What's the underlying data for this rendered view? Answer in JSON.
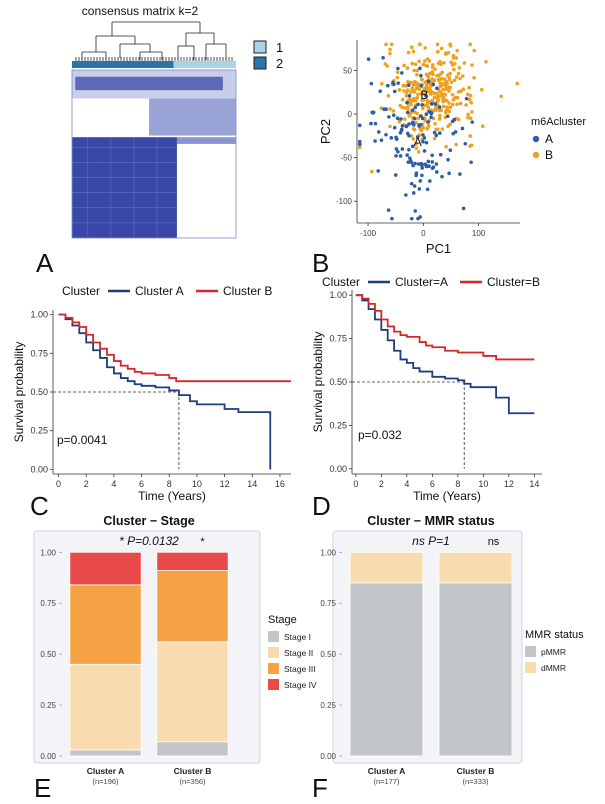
{
  "panel_labels": [
    "A",
    "B",
    "C",
    "D",
    "E",
    "F"
  ],
  "chart_data": [
    {
      "panel": "A",
      "type": "heatmap",
      "title": "consensus matrix k=2",
      "legend": [
        {
          "label": "1",
          "color": "#a8d4e6"
        },
        {
          "label": "2",
          "color": "#2b73a8"
        }
      ],
      "colors": {
        "high": "#3948a8",
        "low": "#ffffff",
        "border": "#7f8dc8"
      },
      "note": "two consensus blocks; block sizes as shares of samples",
      "block_shares": [
        0.64,
        0.36
      ]
    },
    {
      "panel": "B",
      "type": "scatter",
      "xlabel": "PC1",
      "ylabel": "PC2",
      "xticks": [
        -100,
        0,
        100
      ],
      "yticks": [
        50,
        0,
        -50,
        -100
      ],
      "xlim": [
        -120,
        175
      ],
      "ylim": [
        -125,
        85
      ],
      "legend_title": "m6Acluster",
      "series": [
        {
          "name": "A",
          "color": "#2c5ea8",
          "centroid": [
            -10,
            -32
          ],
          "spread": [
            48,
            42
          ],
          "n": 150
        },
        {
          "name": "B",
          "color": "#f0a020",
          "centroid": [
            15,
            25
          ],
          "spread": [
            40,
            26
          ],
          "n": 330
        }
      ],
      "centroid_labels": [
        {
          "text": "A",
          "x": -10,
          "y": -32
        },
        {
          "text": "B",
          "x": 2,
          "y": 22
        }
      ]
    },
    {
      "panel": "C",
      "type": "line",
      "legend_title": "Cluster",
      "xlabel": "Time (Years)",
      "ylabel": "Survival probability",
      "xticks": [
        0,
        2,
        4,
        6,
        8,
        10,
        12,
        14,
        16
      ],
      "yticks": [
        0.0,
        0.25,
        0.5,
        0.75,
        1.0
      ],
      "ytick_labels": [
        "0.00",
        "0.25",
        "0.50",
        "0.75",
        "1.00"
      ],
      "xlim": [
        -0.4,
        16.8
      ],
      "ylim": [
        -0.03,
        1.03
      ],
      "pvalue": "p=0.0041",
      "median_line": {
        "x": 8.7,
        "y": 0.5
      },
      "series": [
        {
          "name": "Cluster A",
          "color": "#1f3d7a",
          "points": [
            [
              0,
              1
            ],
            [
              0.5,
              0.97
            ],
            [
              1,
              0.93
            ],
            [
              1.5,
              0.88
            ],
            [
              2,
              0.82
            ],
            [
              2.5,
              0.77
            ],
            [
              3,
              0.72
            ],
            [
              3.5,
              0.66
            ],
            [
              4,
              0.62
            ],
            [
              4.5,
              0.59
            ],
            [
              5,
              0.57
            ],
            [
              5.5,
              0.55
            ],
            [
              6,
              0.54
            ],
            [
              7,
              0.53
            ],
            [
              8,
              0.51
            ],
            [
              8.7,
              0.48
            ],
            [
              9.5,
              0.44
            ],
            [
              10,
              0.42
            ],
            [
              11,
              0.42
            ],
            [
              12,
              0.39
            ],
            [
              13,
              0.37
            ],
            [
              14,
              0.37
            ],
            [
              15,
              0.37
            ],
            [
              15.3,
              0.0
            ]
          ]
        },
        {
          "name": "Cluster B",
          "color": "#d6282b",
          "points": [
            [
              0,
              1
            ],
            [
              0.5,
              0.98
            ],
            [
              1,
              0.95
            ],
            [
              1.5,
              0.92
            ],
            [
              2,
              0.87
            ],
            [
              2.5,
              0.82
            ],
            [
              3,
              0.78
            ],
            [
              3.5,
              0.74
            ],
            [
              4,
              0.7
            ],
            [
              4.5,
              0.67
            ],
            [
              5,
              0.65
            ],
            [
              5.5,
              0.63
            ],
            [
              6,
              0.62
            ],
            [
              7,
              0.61
            ],
            [
              8,
              0.59
            ],
            [
              8.5,
              0.57
            ],
            [
              10,
              0.57
            ],
            [
              12,
              0.57
            ],
            [
              14,
              0.57
            ],
            [
              16.8,
              0.57
            ]
          ]
        }
      ]
    },
    {
      "panel": "D",
      "type": "line",
      "legend_title": "Cluster",
      "xlabel": "Time (Years)",
      "ylabel": "Survival probability",
      "xticks": [
        0,
        2,
        4,
        6,
        8,
        10,
        12,
        14
      ],
      "yticks": [
        0.0,
        0.25,
        0.5,
        0.75,
        1.0
      ],
      "ytick_labels": [
        "0.00",
        "0.25",
        "0.50",
        "0.75",
        "1.00"
      ],
      "xlim": [
        -0.3,
        14.6
      ],
      "ylim": [
        -0.03,
        1.03
      ],
      "pvalue": "p=0.032",
      "median_line": {
        "x": 8.5,
        "y": 0.5
      },
      "series": [
        {
          "name": "Cluster=A",
          "color": "#1f3d7a",
          "points": [
            [
              0,
              1
            ],
            [
              0.5,
              0.97
            ],
            [
              1,
              0.92
            ],
            [
              1.5,
              0.86
            ],
            [
              2,
              0.8
            ],
            [
              2.5,
              0.74
            ],
            [
              3,
              0.68
            ],
            [
              3.5,
              0.63
            ],
            [
              4,
              0.61
            ],
            [
              4.5,
              0.58
            ],
            [
              5,
              0.56
            ],
            [
              6,
              0.53
            ],
            [
              7,
              0.52
            ],
            [
              8,
              0.51
            ],
            [
              8.5,
              0.49
            ],
            [
              9,
              0.47
            ],
            [
              10,
              0.47
            ],
            [
              11,
              0.41
            ],
            [
              11.5,
              0.41
            ],
            [
              12,
              0.32
            ],
            [
              14,
              0.32
            ]
          ]
        },
        {
          "name": "Cluster=B",
          "color": "#d6282b",
          "points": [
            [
              0,
              1
            ],
            [
              0.5,
              0.98
            ],
            [
              1,
              0.95
            ],
            [
              1.5,
              0.91
            ],
            [
              2,
              0.86
            ],
            [
              2.5,
              0.82
            ],
            [
              3,
              0.79
            ],
            [
              3.5,
              0.77
            ],
            [
              4,
              0.76
            ],
            [
              5,
              0.73
            ],
            [
              5.5,
              0.71
            ],
            [
              6,
              0.7
            ],
            [
              7,
              0.68
            ],
            [
              8,
              0.67
            ],
            [
              9,
              0.67
            ],
            [
              10,
              0.65
            ],
            [
              11,
              0.63
            ],
            [
              12,
              0.63
            ],
            [
              14,
              0.63
            ]
          ]
        }
      ]
    },
    {
      "panel": "E",
      "type": "bar",
      "stacked": true,
      "title": "Cluster − Stage",
      "annotation": "* P=0.0132",
      "bar_mark": "*",
      "categories": [
        "Cluster A",
        "Cluster B"
      ],
      "category_n": [
        "(n=196)",
        "(n=356)"
      ],
      "yticks": [
        0,
        0.25,
        0.5,
        0.75,
        1
      ],
      "ytick_labels": [
        "0.00",
        "0.25",
        "0.50",
        "0.75",
        "1.00"
      ],
      "ylim": [
        -0.01,
        1.07
      ],
      "legend_title": "Stage",
      "series": [
        {
          "name": "Stage I",
          "color": "#c3c6c8",
          "values": [
            0.03,
            0.07
          ]
        },
        {
          "name": "Stage II",
          "color": "#f8dcaf",
          "values": [
            0.42,
            0.49
          ]
        },
        {
          "name": "Stage III",
          "color": "#f4a243",
          "values": [
            0.39,
            0.35
          ]
        },
        {
          "name": "Stage IV",
          "color": "#e84a4a",
          "values": [
            0.16,
            0.09
          ]
        }
      ]
    },
    {
      "panel": "F",
      "type": "bar",
      "stacked": true,
      "title": "Cluster − MMR status",
      "annotation": "ns P=1",
      "bar_mark": "ns",
      "categories": [
        "Cluster A",
        "Cluster B"
      ],
      "category_n": [
        "(n=177)",
        "(n=333)"
      ],
      "yticks": [
        0,
        0.25,
        0.5,
        0.75,
        1
      ],
      "ytick_labels": [
        "0.00",
        "0.25",
        "0.50",
        "0.75",
        "1.00"
      ],
      "ylim": [
        -0.01,
        1.07
      ],
      "legend_title": "MMR status",
      "series": [
        {
          "name": "pMMR",
          "color": "#c3c6c8",
          "values": [
            0.85,
            0.85
          ]
        },
        {
          "name": "dMMR",
          "color": "#f8dcaf",
          "values": [
            0.15,
            0.15
          ]
        }
      ]
    }
  ]
}
